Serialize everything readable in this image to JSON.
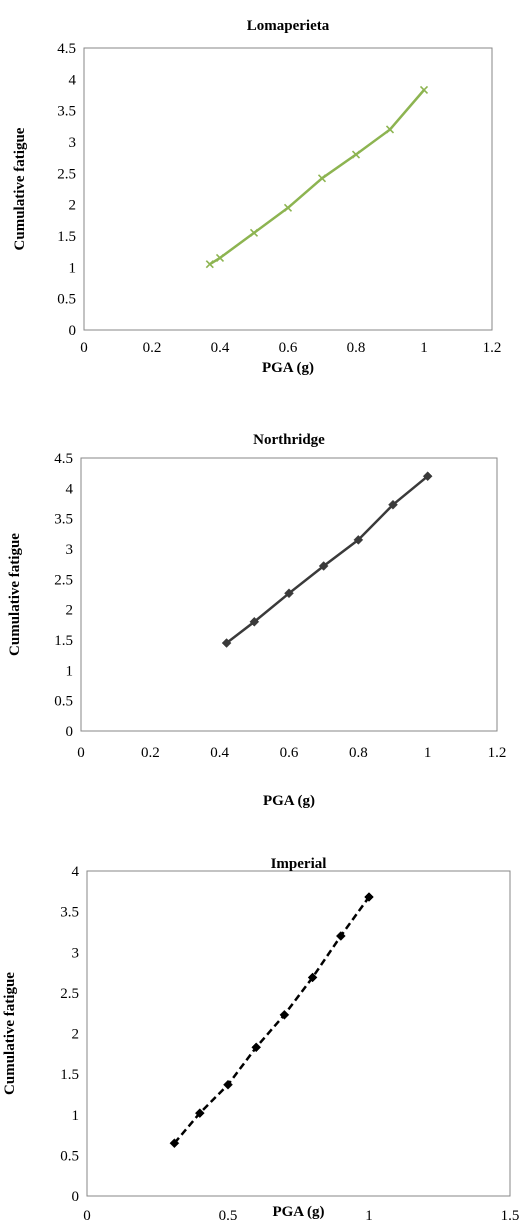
{
  "chart_data": [
    {
      "type": "line",
      "title": "Lomaperieta",
      "xlabel": "PGA (g)",
      "ylabel": "Cumulative fatigue",
      "xlim": [
        0,
        1.2
      ],
      "ylim": [
        0,
        4.5
      ],
      "xticks": [
        0,
        0.2,
        0.4,
        0.6,
        0.8,
        1.0,
        1.2
      ],
      "xtick_labels": [
        "0",
        "0.2",
        "0.4",
        "0.6",
        "0.8",
        "1",
        "1.2"
      ],
      "yticks": [
        0,
        0.5,
        1,
        1.5,
        2,
        2.5,
        3,
        3.5,
        4,
        4.5
      ],
      "ytick_labels": [
        "0",
        "0.5",
        "1",
        "1.5",
        "2",
        "2.5",
        "3",
        "3.5",
        "4",
        "4.5"
      ],
      "grid": false,
      "series": [
        {
          "color": "#8db451",
          "line_style": "solid",
          "marker": "x",
          "x": [
            0.37,
            0.4,
            0.5,
            0.6,
            0.7,
            0.8,
            0.9,
            1.0
          ],
          "values": [
            1.05,
            1.15,
            1.55,
            1.95,
            2.42,
            2.8,
            3.2,
            3.83
          ]
        }
      ]
    },
    {
      "type": "line",
      "title": "Northridge",
      "xlabel": "PGA (g)",
      "ylabel": "Cumulative fatigue",
      "xlim": [
        0,
        1.2
      ],
      "ylim": [
        0,
        4.5
      ],
      "xticks": [
        0,
        0.2,
        0.4,
        0.6,
        0.8,
        1.0,
        1.2
      ],
      "xtick_labels": [
        "0",
        "0.2",
        "0.4",
        "0.6",
        "0.8",
        "1",
        "1.2"
      ],
      "yticks": [
        0,
        0.5,
        1,
        1.5,
        2,
        2.5,
        3,
        3.5,
        4,
        4.5
      ],
      "ytick_labels": [
        "0",
        "0.5",
        "1",
        "1.5",
        "2",
        "2.5",
        "3",
        "3.5",
        "4",
        "4.5"
      ],
      "grid": false,
      "series": [
        {
          "color": "#3a3a3a",
          "line_style": "solid",
          "marker": "diamond",
          "x": [
            0.42,
            0.5,
            0.6,
            0.7,
            0.8,
            0.9,
            1.0
          ],
          "values": [
            1.45,
            1.8,
            2.27,
            2.72,
            3.15,
            3.73,
            4.2
          ]
        }
      ]
    },
    {
      "type": "line",
      "title": "Imperial",
      "xlabel": "PGA (g)",
      "ylabel": "Cumulative fatigue",
      "xlim": [
        0,
        1.5
      ],
      "ylim": [
        0,
        4
      ],
      "xticks": [
        0,
        0.5,
        1.0,
        1.5
      ],
      "xtick_labels": [
        "0",
        "0.5",
        "1",
        "1.5"
      ],
      "yticks": [
        0,
        0.5,
        1,
        1.5,
        2,
        2.5,
        3,
        3.5,
        4
      ],
      "ytick_labels": [
        "0",
        "0.5",
        "1",
        "1.5",
        "2",
        "2.5",
        "3",
        "3.5",
        "4"
      ],
      "grid": false,
      "series": [
        {
          "color": "#000000",
          "line_style": "dashed",
          "marker": "diamond",
          "x": [
            0.31,
            0.4,
            0.5,
            0.6,
            0.7,
            0.8,
            0.9,
            1.0
          ],
          "values": [
            0.65,
            1.02,
            1.37,
            1.83,
            2.23,
            2.69,
            3.2,
            3.68
          ]
        }
      ]
    }
  ]
}
